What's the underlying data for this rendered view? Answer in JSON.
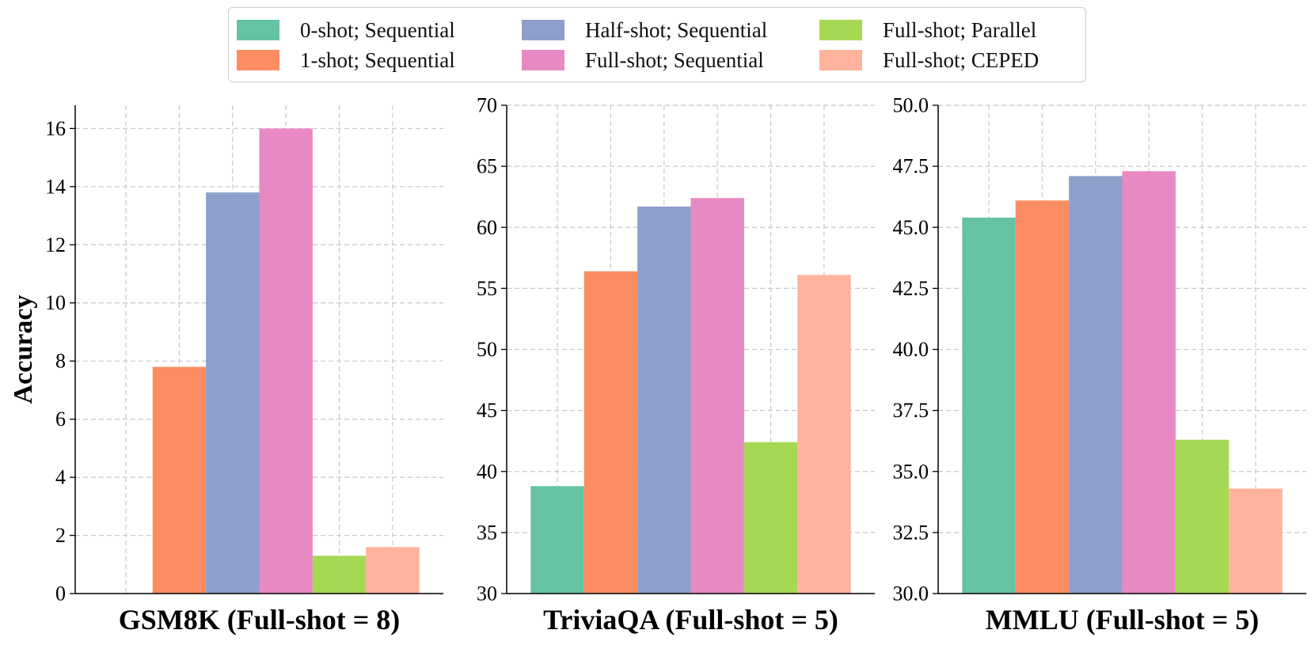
{
  "legend": {
    "entries": [
      {
        "label": "0-shot; Sequential",
        "color": "#66c2a5"
      },
      {
        "label": "1-shot; Sequential",
        "color": "#fc8d62"
      },
      {
        "label": "Half-shot; Sequential",
        "color": "#8da0cb"
      },
      {
        "label": "Full-shot; Sequential",
        "color": "#e78ac3"
      },
      {
        "label": "Full-shot; Parallel",
        "color": "#a6d854"
      },
      {
        "label": "Full-shot; CEPED",
        "color": "#ffb39c"
      }
    ]
  },
  "chart_data": [
    {
      "type": "bar",
      "title": "",
      "xlabel": "GSM8K (Full-shot = 8)",
      "ylabel": "Accuracy",
      "ylim": [
        0,
        16.8
      ],
      "yticks": [
        0,
        2,
        4,
        6,
        8,
        10,
        12,
        14,
        16
      ],
      "ytick_labels": [
        "0",
        "2",
        "4",
        "6",
        "8",
        "10",
        "12",
        "14",
        "16"
      ],
      "grid": true,
      "series": [
        {
          "name": "0-shot; Sequential",
          "values": [
            0.0
          ]
        },
        {
          "name": "1-shot; Sequential",
          "values": [
            7.8
          ]
        },
        {
          "name": "Half-shot; Sequential",
          "values": [
            13.8
          ]
        },
        {
          "name": "Full-shot; Sequential",
          "values": [
            16.0
          ]
        },
        {
          "name": "Full-shot; Parallel",
          "values": [
            1.3
          ]
        },
        {
          "name": "Full-shot; CEPED",
          "values": [
            1.6
          ]
        }
      ]
    },
    {
      "type": "bar",
      "title": "",
      "xlabel": "TriviaQA (Full-shot = 5)",
      "ylabel": "",
      "ylim": [
        30,
        70
      ],
      "yticks": [
        30,
        35,
        40,
        45,
        50,
        55,
        60,
        65,
        70
      ],
      "ytick_labels": [
        "30",
        "35",
        "40",
        "45",
        "50",
        "55",
        "60",
        "65",
        "70"
      ],
      "grid": true,
      "series": [
        {
          "name": "0-shot; Sequential",
          "values": [
            38.8
          ]
        },
        {
          "name": "1-shot; Sequential",
          "values": [
            56.4
          ]
        },
        {
          "name": "Half-shot; Sequential",
          "values": [
            61.7
          ]
        },
        {
          "name": "Full-shot; Sequential",
          "values": [
            62.4
          ]
        },
        {
          "name": "Full-shot; Parallel",
          "values": [
            42.4
          ]
        },
        {
          "name": "Full-shot; CEPED",
          "values": [
            56.1
          ]
        }
      ]
    },
    {
      "type": "bar",
      "title": "",
      "xlabel": "MMLU (Full-shot = 5)",
      "ylabel": "",
      "ylim": [
        30,
        50
      ],
      "yticks": [
        30,
        32.5,
        35,
        37.5,
        40,
        42.5,
        45,
        47.5,
        50
      ],
      "ytick_labels": [
        "30.0",
        "32.5",
        "35.0",
        "37.5",
        "40.0",
        "42.5",
        "45.0",
        "47.5",
        "50.0"
      ],
      "grid": true,
      "series": [
        {
          "name": "0-shot; Sequential",
          "values": [
            45.4
          ]
        },
        {
          "name": "1-shot; Sequential",
          "values": [
            46.1
          ]
        },
        {
          "name": "Half-shot; Sequential",
          "values": [
            47.1
          ]
        },
        {
          "name": "Full-shot; Sequential",
          "values": [
            47.3
          ]
        },
        {
          "name": "Full-shot; Parallel",
          "values": [
            36.3
          ]
        },
        {
          "name": "Full-shot; CEPED",
          "values": [
            34.3
          ]
        }
      ]
    }
  ]
}
